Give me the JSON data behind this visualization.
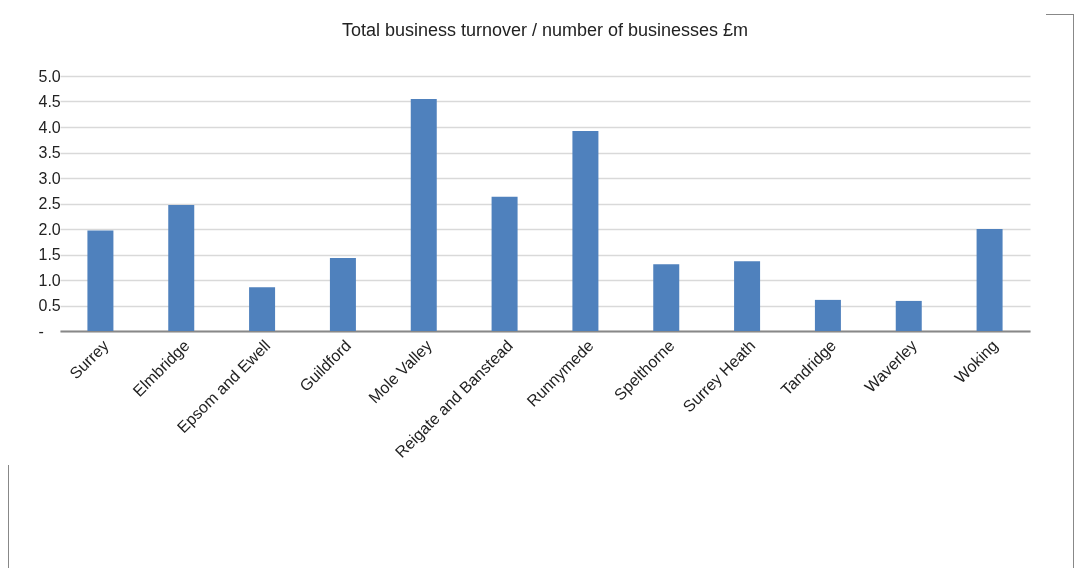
{
  "chart_data": {
    "type": "bar",
    "title": "Total business turnover / number of businesses £m",
    "categories": [
      "Surrey",
      "Elmbridge",
      "Epsom and Ewell",
      "Guildford",
      "Mole Valley",
      "Reigate and Banstead",
      "Runnymede",
      "Spelthorne",
      "Surrey Heath",
      "Tandridge",
      "Waverley",
      "Woking"
    ],
    "values": [
      1.97,
      2.47,
      0.86,
      1.43,
      4.55,
      2.63,
      3.92,
      1.31,
      1.37,
      0.61,
      0.59,
      2.0
    ],
    "color": "#4f81bd",
    "ylim": [
      0,
      5
    ],
    "yticks": [
      {
        "value": 0,
        "label": "-"
      },
      {
        "value": 0.5,
        "label": "0.5"
      },
      {
        "value": 1,
        "label": "1.0"
      },
      {
        "value": 1.5,
        "label": "1.5"
      },
      {
        "value": 2,
        "label": "2.0"
      },
      {
        "value": 2.5,
        "label": "2.5"
      },
      {
        "value": 3,
        "label": "3.0"
      },
      {
        "value": 3.5,
        "label": "3.5"
      },
      {
        "value": 4,
        "label": "4.0"
      },
      {
        "value": 4.5,
        "label": "4.5"
      },
      {
        "value": 5,
        "label": "5.0"
      }
    ],
    "grid": true
  }
}
